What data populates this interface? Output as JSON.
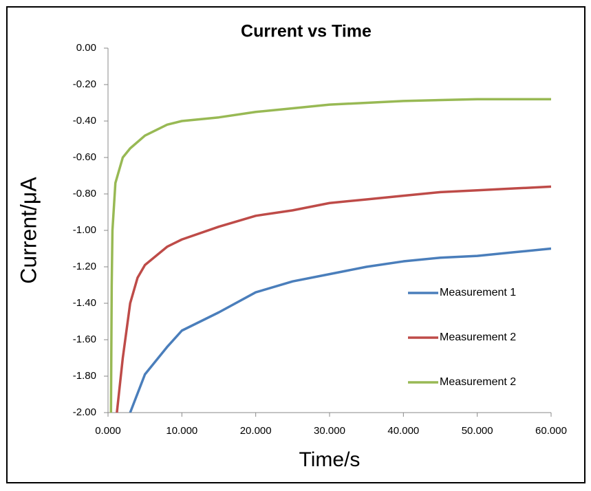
{
  "chart_data": {
    "type": "line",
    "title": "Current vs Time",
    "x_label": "Time/s",
    "y_label": "Current/μA",
    "xlim": [
      0,
      60
    ],
    "ylim": [
      -2,
      0
    ],
    "xticks": [
      {
        "value": 0,
        "label": "0.000"
      },
      {
        "value": 10,
        "label": "10.000"
      },
      {
        "value": 20,
        "label": "20.000"
      },
      {
        "value": 30,
        "label": "30.000"
      },
      {
        "value": 40,
        "label": "40.000"
      },
      {
        "value": 50,
        "label": "50.000"
      },
      {
        "value": 60,
        "label": "60.000"
      }
    ],
    "yticks": [
      {
        "value": 0,
        "label": "0.00"
      },
      {
        "value": -0.2,
        "label": "-0.20"
      },
      {
        "value": -0.4,
        "label": "-0.40"
      },
      {
        "value": -0.6,
        "label": "-0.60"
      },
      {
        "value": -0.8,
        "label": "-0.80"
      },
      {
        "value": -1,
        "label": "-1.00"
      },
      {
        "value": -1.2,
        "label": "-1.20"
      },
      {
        "value": -1.4,
        "label": "-1.40"
      },
      {
        "value": -1.6,
        "label": "-1.60"
      },
      {
        "value": -1.8,
        "label": "-1.80"
      },
      {
        "value": -2,
        "label": "-2.00"
      }
    ],
    "grid": false,
    "legend": "right",
    "series": [
      {
        "name": "Measurement 1",
        "color": "#4a7ebb",
        "x": [
          3,
          5,
          8,
          10,
          15,
          20,
          25,
          30,
          35,
          40,
          45,
          50,
          55,
          60
        ],
        "values": [
          -2,
          -1.79,
          -1.64,
          -1.55,
          -1.45,
          -1.34,
          -1.28,
          -1.24,
          -1.2,
          -1.17,
          -1.15,
          -1.14,
          -1.12,
          -1.1
        ]
      },
      {
        "name": "Measurement 2",
        "color": "#be4b48",
        "x": [
          1.2,
          2,
          3,
          4,
          5,
          8,
          10,
          15,
          20,
          25,
          30,
          35,
          40,
          45,
          50,
          55,
          60
        ],
        "values": [
          -2,
          -1.7,
          -1.4,
          -1.26,
          -1.19,
          -1.09,
          -1.05,
          -0.98,
          -0.92,
          -0.89,
          -0.85,
          -0.83,
          -0.81,
          -0.79,
          -0.78,
          -0.77,
          -0.76
        ]
      },
      {
        "name": "Measurement 2",
        "color": "#98b954",
        "x": [
          0.4,
          0.5,
          0.6,
          1,
          2,
          3,
          5,
          8,
          10,
          15,
          20,
          25,
          30,
          40,
          50,
          60
        ],
        "values": [
          -2,
          -1.3,
          -1,
          -0.74,
          -0.6,
          -0.55,
          -0.48,
          -0.42,
          -0.4,
          -0.38,
          -0.35,
          -0.33,
          -0.31,
          -0.29,
          -0.28,
          -0.28
        ]
      }
    ]
  }
}
